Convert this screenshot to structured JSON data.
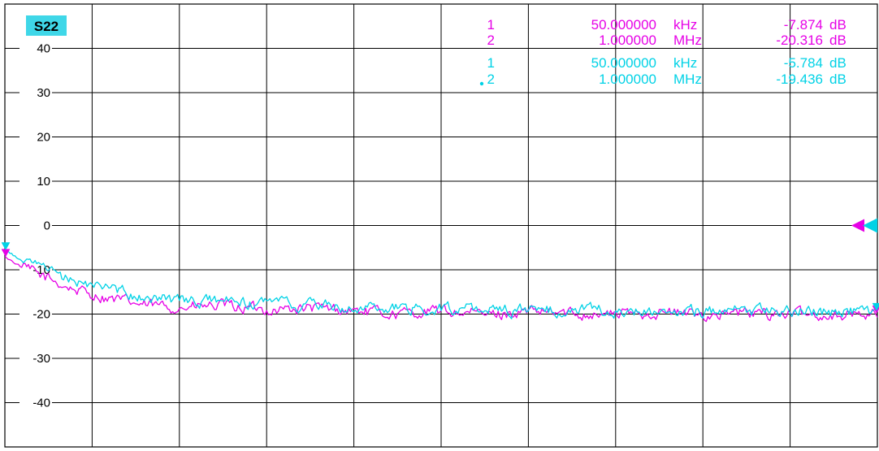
{
  "trace_label": "S22",
  "colors": {
    "trace1": "#e600e6",
    "trace2": "#00d2e6",
    "grid": "#000000",
    "label_bg": "#3fd7e8"
  },
  "markers": [
    {
      "number": "1",
      "frequency": "50.000000",
      "unit": "kHz",
      "value": "-7.874",
      "value_unit": "dB",
      "color": "trace1",
      "active": false
    },
    {
      "number": "2",
      "frequency": "1.000000",
      "unit": "MHz",
      "value": "-20.316",
      "value_unit": "dB",
      "color": "trace1",
      "active": false
    },
    {
      "number": "1",
      "frequency": "50.000000",
      "unit": "kHz",
      "value": "-5.784",
      "value_unit": "dB",
      "color": "trace2",
      "active": false
    },
    {
      "number": "2",
      "frequency": "1.000000",
      "unit": "MHz",
      "value": "-19.436",
      "value_unit": "dB",
      "color": "trace2",
      "active": true
    }
  ],
  "chart_data": {
    "type": "line",
    "title": "",
    "xlabel": "",
    "ylabel": "",
    "ylim": [
      -50,
      50
    ],
    "y_ticks": [
      "40",
      "30",
      "20",
      "10",
      "0",
      "-10",
      "-20",
      "-30",
      "-40"
    ],
    "y_tick_values": [
      40,
      30,
      20,
      10,
      0,
      -10,
      -20,
      -30,
      -40
    ],
    "x_divisions": 10,
    "y_divisions": 10,
    "grid": true,
    "reference_level": 0,
    "series": [
      {
        "color": "trace1",
        "x": [
          0,
          0.02,
          0.05,
          0.08,
          0.12,
          0.16,
          0.2,
          0.25,
          0.3,
          0.35,
          0.4,
          0.45,
          0.5,
          0.55,
          0.6,
          0.65,
          0.7,
          0.75,
          0.8,
          0.85,
          0.9,
          0.95,
          1.0
        ],
        "values": [
          -7.0,
          -9.5,
          -12.0,
          -14.5,
          -16.5,
          -18.0,
          -18.5,
          -18.2,
          -19.0,
          -18.7,
          -19.2,
          -20.0,
          -19.3,
          -20.1,
          -19.6,
          -19.8,
          -20.0,
          -19.6,
          -20.1,
          -19.8,
          -20.0,
          -20.2,
          -19.8
        ]
      },
      {
        "color": "trace2",
        "x": [
          0,
          0.02,
          0.05,
          0.08,
          0.12,
          0.16,
          0.2,
          0.25,
          0.3,
          0.35,
          0.4,
          0.45,
          0.5,
          0.55,
          0.6,
          0.65,
          0.7,
          0.75,
          0.8,
          0.85,
          0.9,
          0.95,
          1.0
        ],
        "values": [
          -5.5,
          -8.0,
          -10.5,
          -12.5,
          -14.5,
          -16.0,
          -17.0,
          -17.2,
          -17.8,
          -18.0,
          -18.4,
          -18.9,
          -18.6,
          -19.0,
          -19.2,
          -19.0,
          -19.3,
          -19.1,
          -19.4,
          -19.2,
          -19.3,
          -19.5,
          -19.2
        ]
      }
    ]
  }
}
